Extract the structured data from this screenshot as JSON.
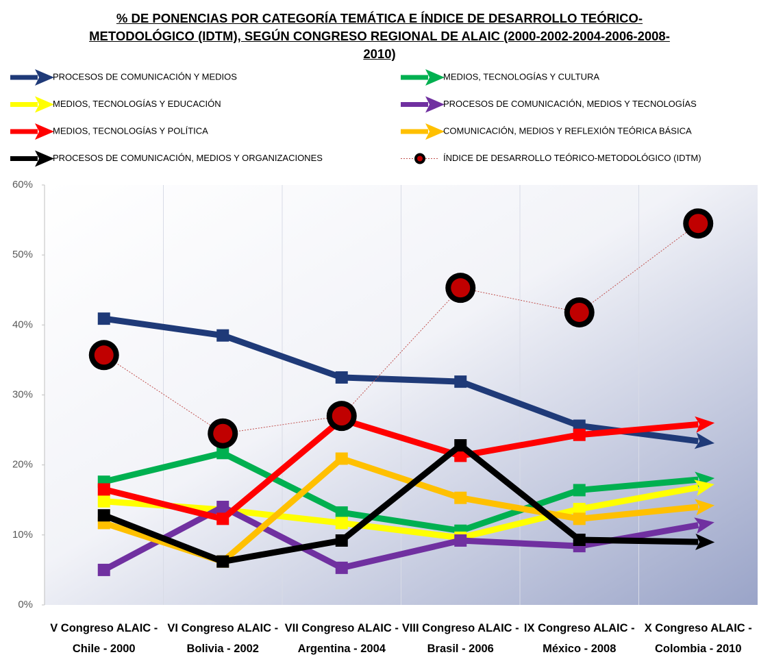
{
  "chart_data": {
    "type": "line",
    "title": "% DE PONENCIAS POR CATEGORÍA TEMÁTICA E ÍNDICE DE DESARROLLO TEÓRICO-METODOLÓGICO (IDTM), SEGÚN  CONGRESO REGIONAL DE ALAIC (2000-2002-2004-2006-2008-2010)",
    "categories": [
      "V Congreso ALAIC - Chile - 2000",
      "VI Congreso ALAIC - Bolivia - 2002",
      "VII Congreso ALAIC - Argentina - 2004",
      "VIII Congreso ALAIC - Brasil - 2006",
      "IX Congreso ALAIC - México - 2008",
      "X Congreso ALAIC - Colombia - 2010"
    ],
    "series": [
      {
        "name": "PROCESOS DE COMUNICACIÓN Y MEDIOS",
        "color": "#1f3a78",
        "marker": "square",
        "values": [
          40.9,
          38.5,
          32.5,
          31.9,
          25.6,
          23.4
        ]
      },
      {
        "name": "MEDIOS, TECNOLOGÍAS Y CULTURA",
        "color": "#00b050",
        "marker": "square",
        "values": [
          17.6,
          21.7,
          13.2,
          10.6,
          16.4,
          17.9
        ]
      },
      {
        "name": "MEDIOS, TECNOLOGÍAS Y EDUCACIÓN",
        "color": "#ffff00",
        "marker": "square",
        "values": [
          14.8,
          13.6,
          11.7,
          9.6,
          13.7,
          16.8
        ]
      },
      {
        "name": "PROCESOS DE COMUNICACIÓN, MEDIOS Y TECNOLOGÍAS",
        "color": "#7030a0",
        "marker": "square",
        "values": [
          5.0,
          14.0,
          5.3,
          9.2,
          8.4,
          11.4
        ]
      },
      {
        "name": "MEDIOS, TECNOLOGÍAS Y POLÍTICA",
        "color": "#ff0000",
        "marker": "square",
        "values": [
          16.5,
          12.3,
          26.5,
          21.3,
          24.3,
          25.8
        ]
      },
      {
        "name": "COMUNICACIÓN, MEDIOS Y REFLEXIÓN TEÓRICA BÁSICA",
        "color": "#ffc000",
        "marker": "square",
        "values": [
          11.7,
          6.2,
          20.9,
          15.3,
          12.3,
          14.0
        ]
      },
      {
        "name": "PROCESOS DE COMUNICACIÓN, MEDIOS Y ORGANIZACIONES",
        "color": "#000000",
        "marker": "square",
        "values": [
          12.8,
          6.2,
          9.2,
          22.8,
          9.3,
          9.0
        ]
      },
      {
        "name": "ÍNDICE DE DESARROLLO TEÓRICO-METODOLÓGICO (IDTM)",
        "color": "#c0504d",
        "marker": "circle",
        "values": [
          35.7,
          24.5,
          27.0,
          45.3,
          41.8,
          54.5
        ]
      }
    ],
    "ylim": [
      0,
      60
    ],
    "yticks": [
      {
        "value": 0,
        "label": "0%"
      },
      {
        "value": 10,
        "label": "10%"
      },
      {
        "value": 20,
        "label": "20%"
      },
      {
        "value": 30,
        "label": "30%"
      },
      {
        "value": 40,
        "label": "40%"
      },
      {
        "value": 50,
        "label": "50%"
      },
      {
        "value": 60,
        "label": "60%"
      }
    ]
  }
}
